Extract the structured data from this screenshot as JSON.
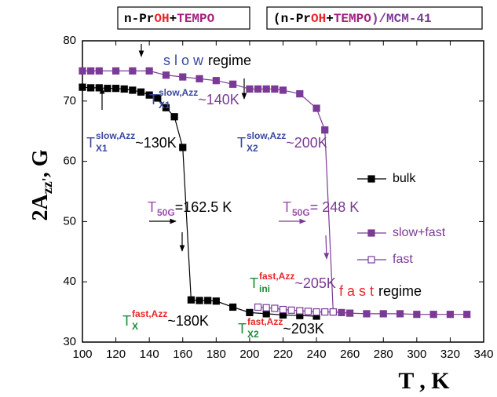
{
  "chart_data": {
    "type": "line",
    "titles": [
      {
        "parts": [
          {
            "text": "n-Pr",
            "color": "#000000"
          },
          {
            "text": "OH",
            "color": "#e8262b"
          },
          {
            "text": "+",
            "color": "#000000"
          },
          {
            "text": "TEMPO",
            "color": "#a3227d"
          }
        ]
      },
      {
        "parts": [
          {
            "text": "(",
            "color": "#000000"
          },
          {
            "text": "n-Pr",
            "color": "#000000"
          },
          {
            "text": "OH",
            "color": "#e8262b"
          },
          {
            "text": "+",
            "color": "#000000"
          },
          {
            "text": "TEMPO",
            "color": "#a3227d"
          },
          {
            "text": ")/MCM-41",
            "color": "#7b3a96"
          }
        ]
      }
    ],
    "x_label": "T , K",
    "y_label": {
      "base": "2A",
      "sub": "zz'",
      "rest": ", G"
    },
    "xlim": [
      100,
      340
    ],
    "ylim": [
      30,
      80
    ],
    "xticks": [
      100,
      120,
      140,
      160,
      180,
      200,
      220,
      240,
      260,
      280,
      300,
      320,
      340
    ],
    "yticks": [
      30,
      40,
      50,
      60,
      70,
      80
    ],
    "series": [
      {
        "name": "bulk",
        "color": "#000000",
        "marker": "filled",
        "x": [
          100,
          105,
          110,
          115,
          120,
          125,
          130,
          135,
          140,
          145,
          150,
          155,
          160,
          165,
          170,
          175,
          180,
          190,
          200,
          210,
          220,
          230,
          240
        ],
        "values": [
          72.3,
          72.2,
          72.2,
          72.1,
          72.1,
          72.0,
          71.8,
          71.5,
          71.0,
          70.5,
          68.9,
          67.4,
          62.3,
          37.0,
          36.9,
          36.9,
          36.8,
          35.8,
          34.9,
          34.7,
          34.5,
          34.4,
          34.3
        ]
      },
      {
        "name": "slow+fast",
        "color": "#7b3a96",
        "marker": "filled",
        "x": [
          100,
          105,
          110,
          120,
          130,
          140,
          150,
          160,
          170,
          180,
          190,
          200,
          205,
          210,
          215,
          220,
          230,
          240,
          245,
          250,
          255,
          260,
          270,
          280,
          290,
          300,
          310,
          320,
          330
        ],
        "values": [
          75.0,
          75.0,
          75.0,
          75.0,
          75.0,
          75.0,
          74.3,
          74.0,
          73.7,
          73.4,
          72.8,
          72.0,
          72.0,
          72.0,
          72.0,
          71.8,
          71.2,
          68.8,
          65.2,
          35.0,
          34.9,
          34.8,
          34.7,
          34.7,
          34.7,
          34.6,
          34.6,
          34.6,
          34.6
        ]
      },
      {
        "name": "fast",
        "color": "#7b3a96",
        "marker": "open",
        "x": [
          205,
          210,
          215,
          220,
          225,
          230,
          235,
          240,
          245,
          250
        ],
        "values": [
          35.8,
          35.7,
          35.6,
          35.4,
          35.3,
          35.2,
          35.1,
          35.0,
          35.0,
          35.0
        ]
      }
    ],
    "annotations": [
      {
        "base": "s l o w",
        "base_color": "#3a49a0",
        "rest": " regime",
        "rest_color": "#000000"
      },
      {
        "base": "T",
        "base_color": "#3a49a0",
        "sub": "X1",
        "sup": "slow,Azz",
        "sup_color": "#3a49a0",
        "rest": "~140K",
        "rest_color": "#7b3a96"
      },
      {
        "base": "T",
        "base_color": "#3a49a0",
        "sub": "X1",
        "sup": "slow,Azz",
        "sup_color": "#3a49a0",
        "rest": "~130K",
        "rest_color": "#000000"
      },
      {
        "base": "T",
        "base_color": "#3a49a0",
        "sub": "X2",
        "sup": "slow,Azz",
        "sup_color": "#3a49a0",
        "rest": "~200K",
        "rest_color": "#7b3a96"
      },
      {
        "base": "T",
        "base_color": "#9b4fae",
        "sub": "50G",
        "rest": "=162.5 K",
        "rest_color": "#000000"
      },
      {
        "base": "T",
        "base_color": "#9b4fae",
        "sub": "50G",
        "rest": "= 248 K",
        "rest_color": "#7b3a96"
      },
      {
        "base": "T",
        "base_color": "#1f8a3a",
        "sub": "ini",
        "sup": "fast,Azz",
        "sup_color": "#e8262b",
        "rest": "~205K",
        "rest_color": "#7b3a96"
      },
      {
        "base": "f a s t",
        "base_color": "#e8262b",
        "rest": " regime",
        "rest_color": "#000000"
      },
      {
        "base": "T",
        "base_color": "#1f8a3a",
        "sub": "X",
        "sup": "fast,Azz",
        "sup_color": "#e8262b",
        "rest": "~180K",
        "rest_color": "#000000"
      },
      {
        "base": "T",
        "base_color": "#1f8a3a",
        "sub": "X2",
        "sup": "fast,Azz",
        "sup_color": "#e8262b",
        "rest": "~203K",
        "rest_color": "#000000"
      }
    ]
  }
}
